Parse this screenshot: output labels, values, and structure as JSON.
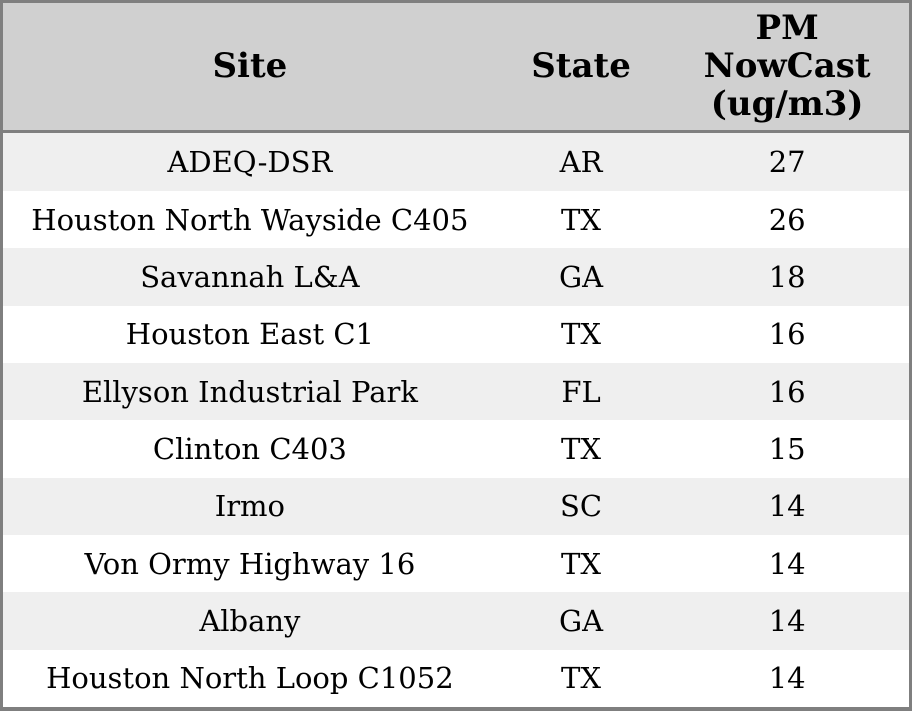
{
  "colors": {
    "header_bg": "#d0d0d0",
    "row_bg": "#ffffff",
    "row_alt_bg": "#efefef",
    "border": "#7f7f7f",
    "text": "#000000"
  },
  "chart_data": {
    "type": "table",
    "title": "",
    "legend": false,
    "columns": [
      {
        "key": "site",
        "label": "Site"
      },
      {
        "key": "state",
        "label": "State"
      },
      {
        "key": "pm_nowcast",
        "label": "PM\nNowCast\n(ug/m3)"
      }
    ],
    "rows": [
      [
        "ADEQ-DSR",
        "AR",
        "27"
      ],
      [
        "Houston North Wayside C405",
        "TX",
        "26"
      ],
      [
        "Savannah L&A",
        "GA",
        "18"
      ],
      [
        "Houston East C1",
        "TX",
        "16"
      ],
      [
        "Ellyson Industrial Park",
        "FL",
        "16"
      ],
      [
        "Clinton C403",
        "TX",
        "15"
      ],
      [
        "Irmo",
        "SC",
        "14"
      ],
      [
        "Von Ormy Highway 16",
        "TX",
        "14"
      ],
      [
        "Albany",
        "GA",
        "14"
      ],
      [
        "Houston North Loop C1052",
        "TX",
        "14"
      ]
    ],
    "pm_nowcast_values": [
      27,
      26,
      18,
      16,
      16,
      15,
      14,
      14,
      14,
      14
    ],
    "units": "ug/m3"
  }
}
